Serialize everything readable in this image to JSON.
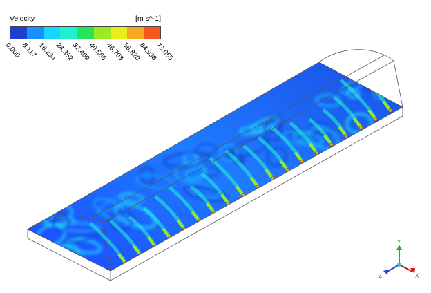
{
  "legend": {
    "title": "Velocity",
    "unit": "[m s^-1]",
    "colors": [
      "#1f3fd0",
      "#1a90ff",
      "#19d4ff",
      "#1ff0d0",
      "#26e35a",
      "#9ceb22",
      "#e8ee1a",
      "#f7a822",
      "#f7561b"
    ],
    "ticks": [
      "0.000",
      "8.117",
      "16.234",
      "24.352",
      "32.469",
      "40.586",
      "48.703",
      "56.820",
      "64.938",
      "73.055"
    ]
  },
  "axes": {
    "x_label": "X",
    "y_label": "Y",
    "z_label": "Z",
    "x_color": "#d01818",
    "y_color": "#22aa22",
    "z_color": "#2a3fd0"
  }
}
